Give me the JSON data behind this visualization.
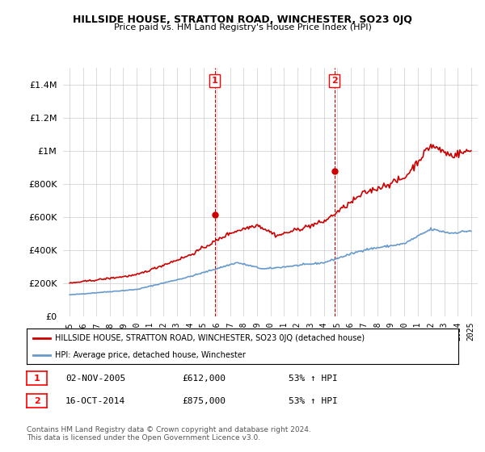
{
  "title": "HILLSIDE HOUSE, STRATTON ROAD, WINCHESTER, SO23 0JQ",
  "subtitle": "Price paid vs. HM Land Registry's House Price Index (HPI)",
  "ytick_vals": [
    0,
    200000,
    400000,
    600000,
    800000,
    1000000,
    1200000,
    1400000
  ],
  "ytick_labels": [
    "£0",
    "£200K",
    "£400K",
    "£600K",
    "£800K",
    "£1M",
    "£1.2M",
    "£1.4M"
  ],
  "ylim": [
    0,
    1500000
  ],
  "xlim_start": 1994.5,
  "xlim_end": 2025.5,
  "marker1_x": 2005.84,
  "marker1_y": 612000,
  "marker2_x": 2014.79,
  "marker2_y": 875000,
  "legend_line1": "HILLSIDE HOUSE, STRATTON ROAD, WINCHESTER, SO23 0JQ (detached house)",
  "legend_line2": "HPI: Average price, detached house, Winchester",
  "annotation1_label": "1",
  "annotation1_date": "02-NOV-2005",
  "annotation1_price": "£612,000",
  "annotation1_hpi": "53% ↑ HPI",
  "annotation2_label": "2",
  "annotation2_date": "16-OCT-2014",
  "annotation2_price": "£875,000",
  "annotation2_hpi": "53% ↑ HPI",
  "footer": "Contains HM Land Registry data © Crown copyright and database right 2024.\nThis data is licensed under the Open Government Licence v3.0.",
  "line_color_red": "#cc0000",
  "line_color_blue": "#6699cc",
  "background_color": "#ffffff",
  "grid_color": "#cccccc"
}
